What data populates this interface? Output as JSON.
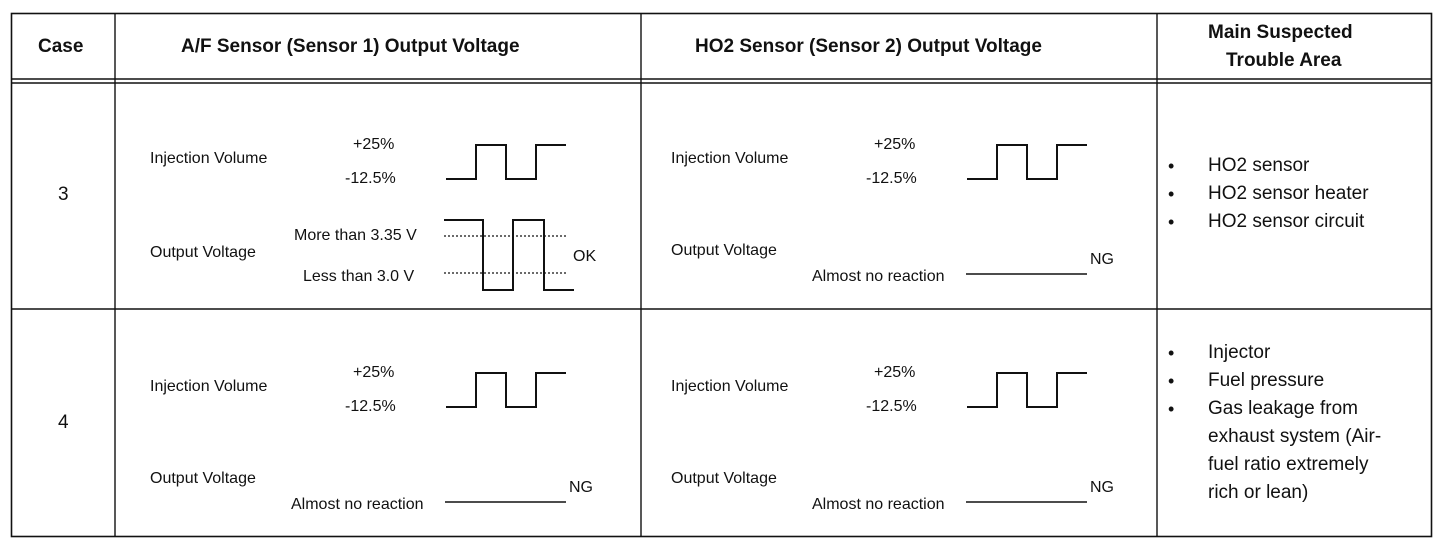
{
  "header": {
    "case": "Case",
    "af": "A/F Sensor (Sensor 1) Output Voltage",
    "ho2": "HO2 Sensor (Sensor 2) Output Voltage",
    "trouble_line1": "Main Suspected",
    "trouble_line2": "Trouble Area"
  },
  "rows": [
    {
      "case": "3",
      "af": {
        "injection_label": "Injection Volume",
        "plus": "+25%",
        "minus": "-12.5%",
        "output_label": "Output Voltage",
        "more_than": "More than 3.35 V",
        "less_than": "Less than 3.0 V",
        "result": "OK"
      },
      "ho2": {
        "injection_label": "Injection Volume",
        "plus": "+25%",
        "minus": "-12.5%",
        "output_label": "Output Voltage",
        "no_reaction": "Almost no reaction",
        "result": "NG"
      },
      "trouble": [
        "HO2 sensor",
        "HO2 sensor heater",
        "HO2 sensor circuit"
      ]
    },
    {
      "case": "4",
      "af": {
        "injection_label": "Injection Volume",
        "plus": "+25%",
        "minus": "-12.5%",
        "output_label": "Output Voltage",
        "no_reaction": "Almost no reaction",
        "result": "NG"
      },
      "ho2": {
        "injection_label": "Injection Volume",
        "plus": "+25%",
        "minus": "-12.5%",
        "output_label": "Output Voltage",
        "no_reaction": "Almost no reaction",
        "result": "NG"
      },
      "trouble": [
        "Injector",
        "Fuel pressure",
        "Gas leakage from",
        "exhaust system (Air-",
        "fuel ratio extremely",
        "rich or lean)"
      ],
      "trouble_bullets": 3
    }
  ],
  "bullet_symbol": "•"
}
